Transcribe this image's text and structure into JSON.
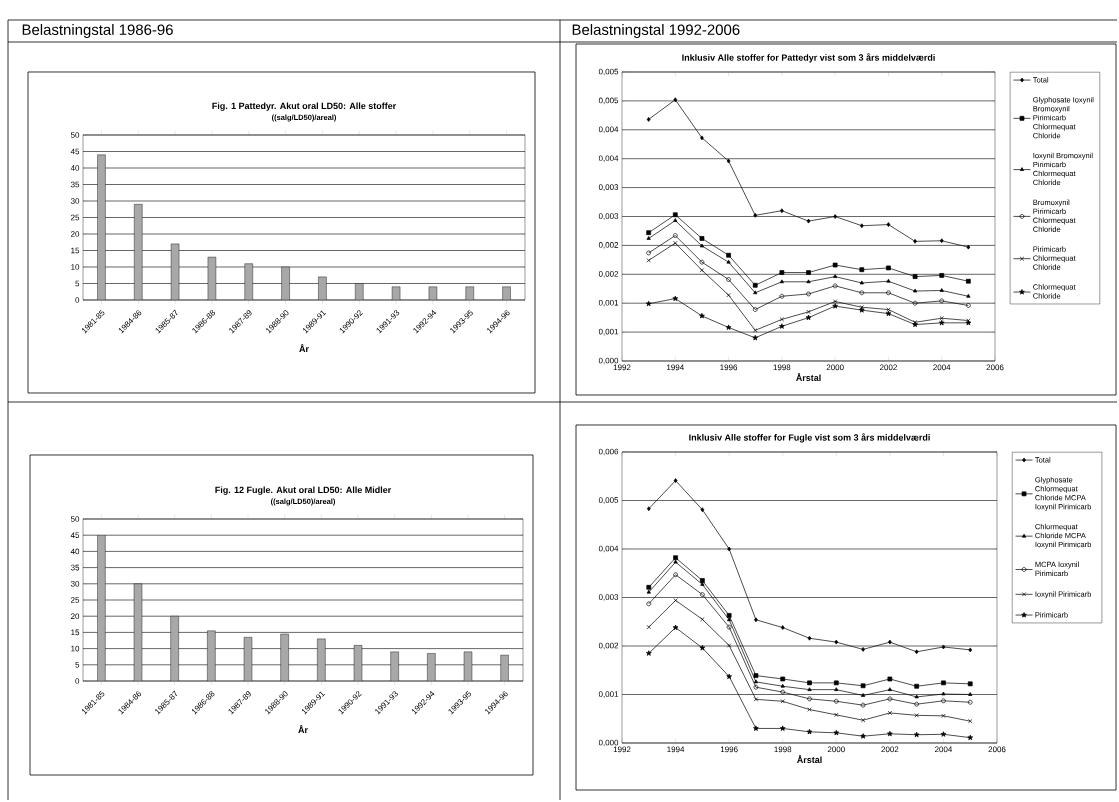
{
  "chart_data": [
    {
      "type": "bar",
      "title": "Fig. 1   Pattedyr. Akut oral LD50: Alle stoffer",
      "subtitle": "((salg/LD50)/areal)",
      "xlabel": "År",
      "annotations": [
        "Belastningstal 1986-96"
      ],
      "categories": [
        "1981-85",
        "1984-86",
        "1985-87",
        "1986-88",
        "1987-89",
        "1988-90",
        "1989-91",
        "1990-92",
        "1991-93",
        "1992-94",
        "1993-95",
        "1994-96"
      ],
      "values": [
        44,
        29,
        17,
        13,
        11,
        10,
        7,
        5,
        4,
        4,
        4,
        4
      ],
      "color": "#a8a8a8",
      "ylim": [
        0,
        50
      ],
      "yticks": [
        0,
        5,
        10,
        15,
        20,
        25,
        30,
        35,
        40,
        45,
        50
      ],
      "grid": "y"
    },
    {
      "type": "line",
      "title": "Inklusiv Alle stoffer for Pattedyr vist som 3 års middelværdi",
      "xlabel": "Årstal",
      "annotations": [
        "Belastningstal 1992-2006"
      ],
      "x": [
        1993,
        1994,
        1995,
        1996,
        1997,
        1998,
        1999,
        2000,
        2001,
        2002,
        2003,
        2004,
        2005
      ],
      "series": [
        {
          "name": "Total",
          "color": "#000000",
          "marker": "diamond",
          "values": [
            0.00418,
            0.00452,
            0.00386,
            0.00346,
            0.00252,
            0.0026,
            0.00242,
            0.0025,
            0.00234,
            0.00236,
            0.00207,
            0.00208,
            0.00197
          ]
        },
        {
          "name": "Glyphosate Ioxynil Bromoxynil Pirimicarb Chlormequat Chloride",
          "color": "#000000",
          "marker": "square",
          "values": [
            0.00222,
            0.00253,
            0.00212,
            0.00183,
            0.00131,
            0.00153,
            0.00153,
            0.00166,
            0.00158,
            0.00161,
            0.00146,
            0.00148,
            0.00138
          ]
        },
        {
          "name": "Ioxynil Bromoxynil Pirimicarb Chlormequat Chloride",
          "color": "#000000",
          "marker": "triangle",
          "values": [
            0.00212,
            0.00243,
            0.00199,
            0.00171,
            0.00118,
            0.00137,
            0.00137,
            0.00146,
            0.00135,
            0.00138,
            0.00121,
            0.00122,
            0.00112
          ]
        },
        {
          "name": "Bromoxynil Pirimicarb Chlormequat Chloride",
          "color": "#000000",
          "marker": "circle",
          "values": [
            0.00187,
            0.00217,
            0.00171,
            0.00141,
            0.00089,
            0.00112,
            0.00116,
            0.0013,
            0.00118,
            0.00118,
            0.001,
            0.00104,
            0.00096
          ]
        },
        {
          "name": "Pirimicarb Chlormequat Chloride",
          "color": "#000000",
          "marker": "cross",
          "values": [
            0.00174,
            0.00204,
            0.00157,
            0.00114,
            0.00053,
            0.00072,
            0.00085,
            0.00103,
            0.00093,
            0.00089,
            0.00067,
            0.00074,
            0.0007
          ]
        },
        {
          "name": "Chlormequat Chloride",
          "color": "#000000",
          "marker": "star",
          "values": [
            0.00099,
            0.00108,
            0.00078,
            0.00058,
            0.0004,
            0.0006,
            0.00075,
            0.00095,
            0.00088,
            0.00082,
            0.00063,
            0.00066,
            0.00066
          ]
        }
      ],
      "xlim": [
        1992,
        2006
      ],
      "xticks": [
        1992,
        1994,
        1996,
        1998,
        2000,
        2002,
        2004,
        2006
      ],
      "ylim": [
        0,
        0.005
      ],
      "yticks": [
        {
          "value": 0,
          "label": "0,000"
        },
        {
          "value": 0.0005,
          "label": "0,001"
        },
        {
          "value": 0.001,
          "label": "0,001"
        },
        {
          "value": 0.0015,
          "label": "0,002"
        },
        {
          "value": 0.002,
          "label": "0,002"
        },
        {
          "value": 0.0025,
          "label": "0,003"
        },
        {
          "value": 0.003,
          "label": "0,003"
        },
        {
          "value": 0.0035,
          "label": "0,004"
        },
        {
          "value": 0.004,
          "label": "0,004"
        },
        {
          "value": 0.0045,
          "label": "0,005"
        },
        {
          "value": 0.005,
          "label": "0,005"
        }
      ],
      "grid": "y",
      "legend": "right"
    },
    {
      "type": "bar",
      "title": "Fig. 12   Fugle. Akut oral LD50: Alle Midler",
      "subtitle": "((salg/LD50)/areal)",
      "xlabel": "År",
      "categories": [
        "1981-85",
        "1984-86",
        "1985-87",
        "1986-88",
        "1987-89",
        "1988-90",
        "1989-91",
        "1990-92",
        "1991-93",
        "1992-94",
        "1993-95",
        "1994-96"
      ],
      "values": [
        45,
        30,
        20,
        15.5,
        13.5,
        14.5,
        13,
        11,
        9,
        8.5,
        9,
        8
      ],
      "color": "#a8a8a8",
      "ylim": [
        0,
        50
      ],
      "yticks": [
        0,
        5,
        10,
        15,
        20,
        25,
        30,
        35,
        40,
        45,
        50
      ],
      "grid": "y"
    },
    {
      "type": "line",
      "title": "Inklusiv Alle stoffer for Fugle vist som 3 års middelværdi",
      "xlabel": "Årstal",
      "x": [
        1993,
        1994,
        1995,
        1996,
        1997,
        1998,
        1999,
        2000,
        2001,
        2002,
        2003,
        2004,
        2005
      ],
      "series": [
        {
          "name": "Total",
          "color": "#000000",
          "marker": "diamond",
          "values": [
            0.00483,
            0.00541,
            0.00481,
            0.004,
            0.00254,
            0.00238,
            0.00216,
            0.00208,
            0.00193,
            0.00208,
            0.00188,
            0.00198,
            0.00192
          ]
        },
        {
          "name": "Glyphosate Chlormequat Chloride MCPA Ioxynil Pirimicarb",
          "color": "#000000",
          "marker": "square",
          "values": [
            0.00321,
            0.00382,
            0.00335,
            0.00263,
            0.00139,
            0.00132,
            0.00124,
            0.00124,
            0.00118,
            0.00132,
            0.00117,
            0.00124,
            0.00122
          ]
        },
        {
          "name": "Chlormequat Chloride MCPA Ioxynil Pirimicarb",
          "color": "#000000",
          "marker": "triangle",
          "values": [
            0.00311,
            0.00373,
            0.00327,
            0.00254,
            0.00126,
            0.00117,
            0.0011,
            0.0011,
            0.00098,
            0.0011,
            0.00095,
            0.00101,
            0.001
          ]
        },
        {
          "name": "MCPA Ioxynil Pirimicarb",
          "color": "#000000",
          "marker": "circle",
          "values": [
            0.00287,
            0.00347,
            0.00306,
            0.00239,
            0.00115,
            0.00105,
            0.00091,
            0.00086,
            0.00078,
            0.00091,
            0.0008,
            0.00087,
            0.00084
          ]
        },
        {
          "name": "Ioxynil Pirimicarb",
          "color": "#000000",
          "marker": "cross",
          "values": [
            0.00239,
            0.00294,
            0.00255,
            0.00201,
            0.0009,
            0.00086,
            0.00069,
            0.00058,
            0.00047,
            0.00062,
            0.00057,
            0.00056,
            0.00045
          ]
        },
        {
          "name": "Pirimicarb",
          "color": "#000000",
          "marker": "star",
          "values": [
            0.00185,
            0.00238,
            0.00196,
            0.00137,
            0.0003,
            0.0003,
            0.00023,
            0.00021,
            0.00014,
            0.00019,
            0.00017,
            0.00018,
            0.00011
          ]
        }
      ],
      "xlim": [
        1992,
        2006
      ],
      "xticks": [
        1992,
        1994,
        1996,
        1998,
        2000,
        2002,
        2004,
        2006
      ],
      "ylim": [
        0,
        0.006
      ],
      "yticks": [
        {
          "value": 0,
          "label": "0,000"
        },
        {
          "value": 0.001,
          "label": "0,001"
        },
        {
          "value": 0.002,
          "label": "0,002"
        },
        {
          "value": 0.003,
          "label": "0,003"
        },
        {
          "value": 0.004,
          "label": "0,004"
        },
        {
          "value": 0.005,
          "label": "0,005"
        },
        {
          "value": 0.006,
          "label": "0,006"
        }
      ],
      "grid": "y",
      "legend": "right"
    }
  ]
}
